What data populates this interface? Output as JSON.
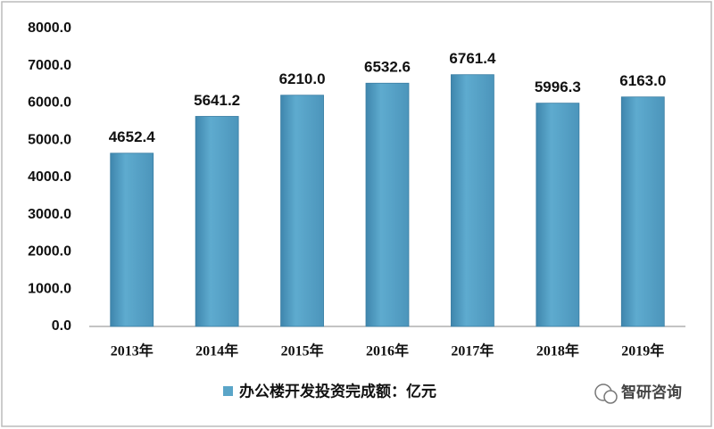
{
  "chart_data": {
    "type": "bar",
    "categories": [
      "2013年",
      "2014年",
      "2015年",
      "2016年",
      "2017年",
      "2018年",
      "2019年"
    ],
    "series": [
      {
        "name": "办公楼开发投资完成额：亿元",
        "color": "#5aa5c8",
        "values": [
          4652.4,
          5641.2,
          6210.0,
          6532.6,
          6761.4,
          5996.3,
          6163.0
        ],
        "value_labels": [
          "4652.4",
          "5641.2",
          "6210.0",
          "6532.6",
          "6761.4",
          "5996.3",
          "6163.0"
        ]
      }
    ],
    "ylim": [
      0,
      8000
    ],
    "yticks": [
      {
        "value": 0,
        "label": "0.0"
      },
      {
        "value": 1000,
        "label": "1000.0"
      },
      {
        "value": 2000,
        "label": "2000.0"
      },
      {
        "value": 3000,
        "label": "3000.0"
      },
      {
        "value": 4000,
        "label": "4000.0"
      },
      {
        "value": 5000,
        "label": "5000.0"
      },
      {
        "value": 6000,
        "label": "6000.0"
      },
      {
        "value": 7000,
        "label": "7000.0"
      },
      {
        "value": 8000,
        "label": "8000.0"
      }
    ],
    "watermark": "智研咨询"
  }
}
